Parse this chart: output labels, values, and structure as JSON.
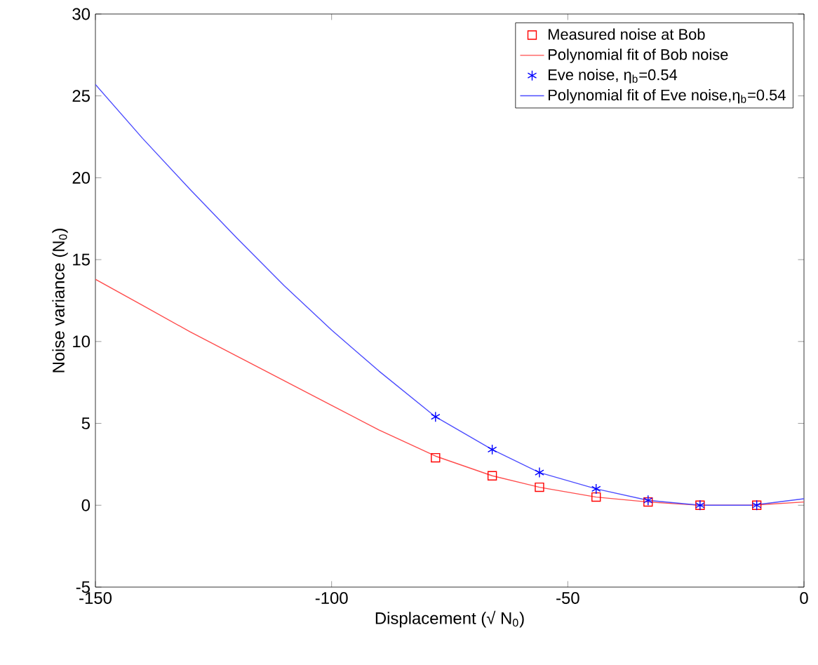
{
  "chart_data": {
    "type": "line",
    "xlabel": "Displacement (√ N$_{0}$)",
    "ylabel": "Noise variance (N$_{0}$)",
    "xlim": [
      -150,
      0
    ],
    "ylim": [
      -5,
      30
    ],
    "xticks": [
      -150,
      -100,
      -50,
      0
    ],
    "yticks": [
      -5,
      0,
      5,
      10,
      15,
      20,
      25,
      30
    ],
    "grid": false,
    "legend": "top right",
    "series": [
      {
        "name": "Measured noise at Bob",
        "type": "scatter",
        "marker": "square",
        "color": "#ff0000",
        "x": [
          -78,
          -66,
          -56,
          -44,
          -33,
          -22,
          -10
        ],
        "values": [
          2.9,
          1.8,
          1.1,
          0.5,
          0.2,
          0.0,
          0.0
        ]
      },
      {
        "name": "Polynomial fit of Bob noise",
        "line_style": "solid",
        "color": "#ff4d4d",
        "x": [
          -150,
          -140,
          -130,
          -120,
          -110,
          -100,
          -90,
          -78,
          -66,
          -56,
          -44,
          -33,
          -22,
          -11,
          0
        ],
        "values": [
          13.8,
          12.2,
          10.6,
          9.1,
          7.6,
          6.1,
          4.6,
          3.0,
          1.8,
          1.1,
          0.5,
          0.2,
          0.0,
          0.0,
          0.2
        ]
      },
      {
        "name": "Eve noise, η$_{b}$=0.54",
        "type": "scatter",
        "marker": "cross",
        "color": "#0000ff",
        "x": [
          -78,
          -66,
          -56,
          -44,
          -33,
          -22,
          -10
        ],
        "values": [
          5.4,
          3.4,
          2.0,
          1.0,
          0.3,
          0.0,
          0.0
        ]
      },
      {
        "name": "Polynomial fit  of Eve noise,η$_{b}$=0.54",
        "line_style": "solid",
        "color": "#4d4dff",
        "x": [
          -150,
          -140,
          -130,
          -120,
          -110,
          -100,
          -90,
          -78,
          -66,
          -56,
          -44,
          -33,
          -22,
          -11,
          0
        ],
        "values": [
          25.7,
          22.4,
          19.3,
          16.3,
          13.4,
          10.7,
          8.2,
          5.4,
          3.4,
          2.0,
          1.0,
          0.3,
          0.0,
          0.0,
          0.4
        ]
      }
    ]
  }
}
